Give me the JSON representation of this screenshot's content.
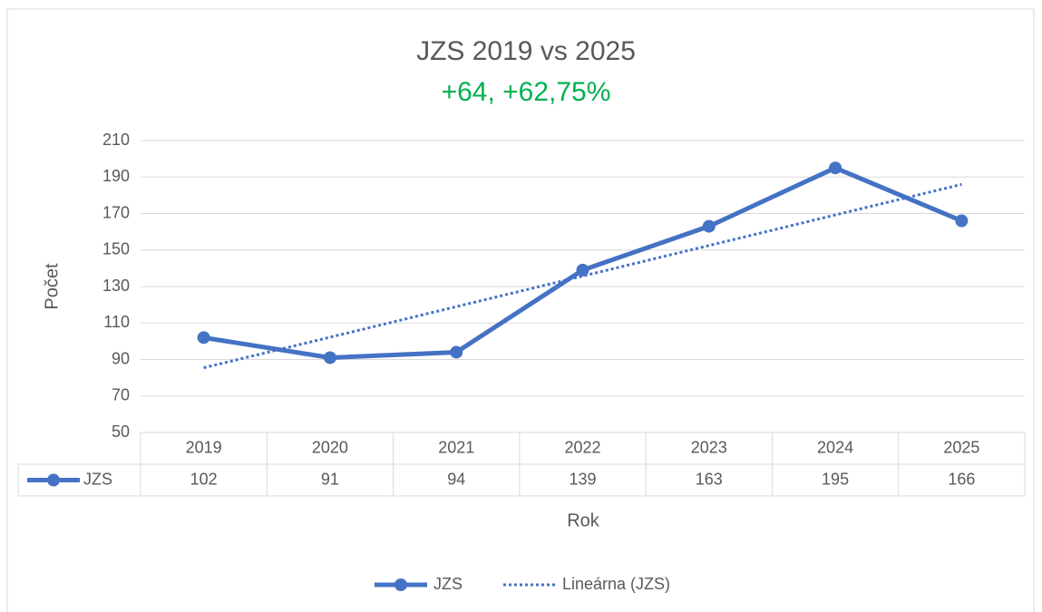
{
  "chart_data": {
    "type": "line",
    "title": "JZS 2019 vs 2025",
    "subtitle": "+64, +62,75%",
    "subtitle_color": "#00b050",
    "y_label": "Počet",
    "x_label": "Rok",
    "categories": [
      "2019",
      "2020",
      "2021",
      "2022",
      "2023",
      "2024",
      "2025"
    ],
    "series": [
      {
        "name": "JZS",
        "color": "#4472c4",
        "values": [
          102,
          91,
          94,
          139,
          163,
          195,
          166
        ]
      }
    ],
    "trendline": {
      "name": "Lineárna (JZS)",
      "type": "linear",
      "style": "dotted",
      "color": "#4472c4"
    },
    "ylim": [
      50,
      210
    ],
    "yticks": [
      50,
      70,
      90,
      110,
      130,
      150,
      170,
      190,
      210
    ],
    "grid": true,
    "data_table": true,
    "legend": "bottom"
  }
}
